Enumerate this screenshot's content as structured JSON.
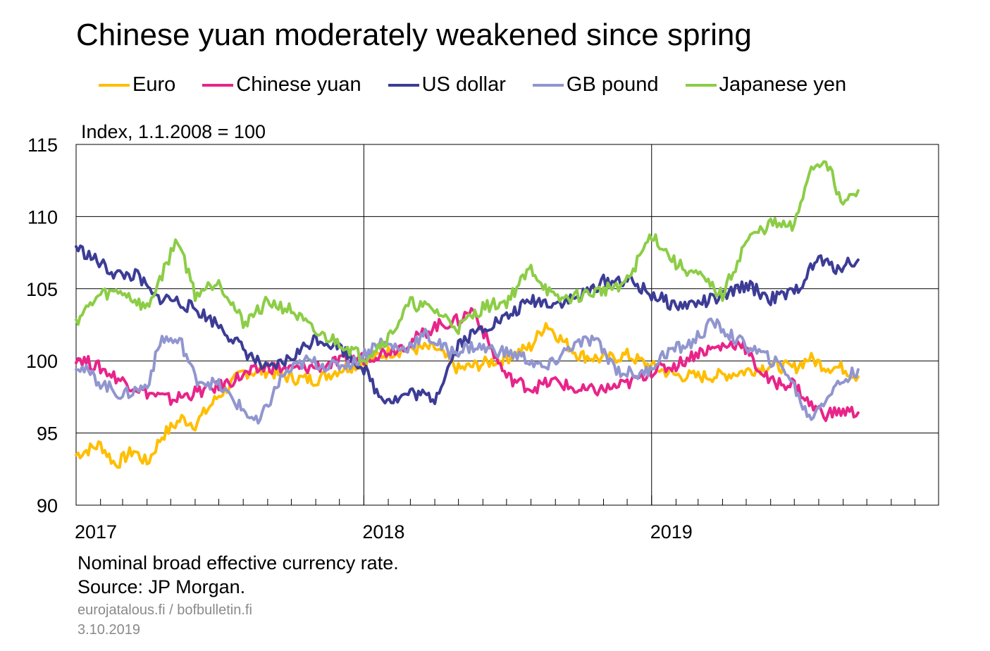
{
  "chart_data": {
    "type": "line",
    "title": "Chinese yuan moderately weakened since spring",
    "ylabel": "Index, 1.1.2008 = 100",
    "xlabel": "",
    "ylim": [
      90,
      115
    ],
    "xlim": [
      "2017-01-01",
      "2019-12-31"
    ],
    "yticks": [
      90,
      95,
      100,
      105,
      110,
      115
    ],
    "xtick_labels": [
      "2017",
      "2018",
      "2019"
    ],
    "legend_position": "top",
    "grid": true,
    "series": [
      {
        "name": "Euro",
        "color": "#ffbe00",
        "points": [
          [
            "2017-01-01",
            93.5
          ],
          [
            "2017-02-01",
            94.2
          ],
          [
            "2017-02-20",
            92.8
          ],
          [
            "2017-03-15",
            93.8
          ],
          [
            "2017-04-01",
            92.9
          ],
          [
            "2017-04-20",
            94.8
          ],
          [
            "2017-05-15",
            96.0
          ],
          [
            "2017-06-01",
            95.6
          ],
          [
            "2017-07-01",
            97.6
          ],
          [
            "2017-08-01",
            99.2
          ],
          [
            "2017-09-01",
            99.3
          ],
          [
            "2017-10-01",
            98.8
          ],
          [
            "2017-11-01",
            98.7
          ],
          [
            "2017-12-01",
            99.4
          ],
          [
            "2018-01-01",
            99.9
          ],
          [
            "2018-02-01",
            100.6
          ],
          [
            "2018-03-01",
            100.8
          ],
          [
            "2018-04-01",
            100.9
          ],
          [
            "2018-05-01",
            99.4
          ],
          [
            "2018-06-01",
            99.8
          ],
          [
            "2018-07-01",
            100.2
          ],
          [
            "2018-08-01",
            101.0
          ],
          [
            "2018-08-20",
            102.6
          ],
          [
            "2018-09-10",
            101.4
          ],
          [
            "2018-10-01",
            100.4
          ],
          [
            "2018-11-01",
            100.1
          ],
          [
            "2018-12-01",
            100.4
          ],
          [
            "2019-01-01",
            99.6
          ],
          [
            "2019-02-01",
            99.0
          ],
          [
            "2019-03-01",
            98.9
          ],
          [
            "2019-04-01",
            99.0
          ],
          [
            "2019-05-01",
            99.3
          ],
          [
            "2019-06-01",
            99.7
          ],
          [
            "2019-07-01",
            99.5
          ],
          [
            "2019-07-20",
            100.2
          ],
          [
            "2019-08-10",
            99.6
          ],
          [
            "2019-09-01",
            99.5
          ],
          [
            "2019-09-20",
            98.9
          ]
        ]
      },
      {
        "name": "Chinese yuan",
        "color": "#e8248a",
        "points": [
          [
            "2017-01-01",
            100.3
          ],
          [
            "2017-02-01",
            99.5
          ],
          [
            "2017-03-01",
            98.6
          ],
          [
            "2017-04-01",
            97.8
          ],
          [
            "2017-05-01",
            97.3
          ],
          [
            "2017-06-01",
            97.8
          ],
          [
            "2017-07-01",
            98.2
          ],
          [
            "2017-08-01",
            99.0
          ],
          [
            "2017-09-01",
            99.6
          ],
          [
            "2017-10-01",
            99.4
          ],
          [
            "2017-11-01",
            99.6
          ],
          [
            "2017-12-01",
            99.9
          ],
          [
            "2018-01-01",
            100.2
          ],
          [
            "2018-02-01",
            100.7
          ],
          [
            "2018-03-01",
            101.3
          ],
          [
            "2018-04-01",
            102.4
          ],
          [
            "2018-05-01",
            102.8
          ],
          [
            "2018-05-20",
            103.6
          ],
          [
            "2018-06-10",
            101.0
          ],
          [
            "2018-07-01",
            98.9
          ],
          [
            "2018-08-01",
            98.1
          ],
          [
            "2018-09-01",
            98.6
          ],
          [
            "2018-10-01",
            97.9
          ],
          [
            "2018-11-01",
            98.0
          ],
          [
            "2018-12-01",
            98.4
          ],
          [
            "2019-01-01",
            99.3
          ],
          [
            "2019-02-01",
            99.7
          ],
          [
            "2019-03-01",
            100.6
          ],
          [
            "2019-04-01",
            101.0
          ],
          [
            "2019-04-25",
            101.3
          ],
          [
            "2019-05-10",
            99.9
          ],
          [
            "2019-06-01",
            98.5
          ],
          [
            "2019-07-01",
            98.4
          ],
          [
            "2019-07-20",
            97.0
          ],
          [
            "2019-08-10",
            96.3
          ],
          [
            "2019-09-01",
            96.5
          ],
          [
            "2019-09-20",
            96.4
          ]
        ]
      },
      {
        "name": "US dollar",
        "color": "#3c3c96",
        "points": [
          [
            "2017-01-01",
            107.9
          ],
          [
            "2017-01-20",
            107.2
          ],
          [
            "2017-02-20",
            106.0
          ],
          [
            "2017-03-20",
            105.9
          ],
          [
            "2017-04-10",
            104.4
          ],
          [
            "2017-05-01",
            104.3
          ],
          [
            "2017-06-01",
            103.6
          ],
          [
            "2017-07-01",
            102.5
          ],
          [
            "2017-08-01",
            100.8
          ],
          [
            "2017-09-01",
            99.3
          ],
          [
            "2017-10-01",
            100.2
          ],
          [
            "2017-11-01",
            101.6
          ],
          [
            "2017-12-01",
            101.0
          ],
          [
            "2018-01-01",
            99.5
          ],
          [
            "2018-01-20",
            97.6
          ],
          [
            "2018-02-10",
            97.3
          ],
          [
            "2018-03-01",
            97.8
          ],
          [
            "2018-04-01",
            97.4
          ],
          [
            "2018-05-01",
            101.2
          ],
          [
            "2018-06-01",
            102.3
          ],
          [
            "2018-07-01",
            103.0
          ],
          [
            "2018-08-01",
            104.2
          ],
          [
            "2018-09-01",
            104.0
          ],
          [
            "2018-10-01",
            104.4
          ],
          [
            "2018-11-01",
            105.5
          ],
          [
            "2018-12-01",
            105.6
          ],
          [
            "2019-01-01",
            104.6
          ],
          [
            "2019-02-01",
            103.8
          ],
          [
            "2019-03-01",
            104.0
          ],
          [
            "2019-04-01",
            104.4
          ],
          [
            "2019-05-01",
            105.3
          ],
          [
            "2019-06-01",
            104.3
          ],
          [
            "2019-07-01",
            104.7
          ],
          [
            "2019-08-01",
            107.1
          ],
          [
            "2019-08-20",
            106.4
          ],
          [
            "2019-09-20",
            107.0
          ]
        ]
      },
      {
        "name": "GB pound",
        "color": "#9196cf",
        "points": [
          [
            "2017-01-01",
            99.8
          ],
          [
            "2017-02-01",
            98.5
          ],
          [
            "2017-03-01",
            97.6
          ],
          [
            "2017-04-01",
            98.3
          ],
          [
            "2017-04-20",
            101.6
          ],
          [
            "2017-05-15",
            101.2
          ],
          [
            "2017-06-01",
            98.8
          ],
          [
            "2017-07-01",
            98.3
          ],
          [
            "2017-08-01",
            96.6
          ],
          [
            "2017-08-20",
            95.6
          ],
          [
            "2017-09-20",
            99.0
          ],
          [
            "2017-10-20",
            100.0
          ],
          [
            "2017-11-20",
            99.6
          ],
          [
            "2017-12-20",
            99.9
          ],
          [
            "2018-01-20",
            101.3
          ],
          [
            "2018-02-20",
            100.8
          ],
          [
            "2018-03-20",
            101.8
          ],
          [
            "2018-04-20",
            100.6
          ],
          [
            "2018-05-20",
            101.0
          ],
          [
            "2018-06-20",
            100.7
          ],
          [
            "2018-07-20",
            100.3
          ],
          [
            "2018-08-20",
            99.4
          ],
          [
            "2018-09-20",
            101.0
          ],
          [
            "2018-10-20",
            101.5
          ],
          [
            "2018-11-20",
            99.3
          ],
          [
            "2018-12-20",
            99.0
          ],
          [
            "2019-01-20",
            100.6
          ],
          [
            "2019-02-20",
            101.2
          ],
          [
            "2019-03-20",
            102.7
          ],
          [
            "2019-04-20",
            101.4
          ],
          [
            "2019-05-20",
            100.5
          ],
          [
            "2019-06-20",
            99.4
          ],
          [
            "2019-07-20",
            96.0
          ],
          [
            "2019-08-20",
            98.1
          ],
          [
            "2019-09-20",
            99.4
          ]
        ]
      },
      {
        "name": "Japanese yen",
        "color": "#8ccd46",
        "points": [
          [
            "2017-01-01",
            102.8
          ],
          [
            "2017-02-01",
            104.6
          ],
          [
            "2017-03-01",
            104.8
          ],
          [
            "2017-04-01",
            103.6
          ],
          [
            "2017-04-20",
            106.0
          ],
          [
            "2017-05-10",
            108.5
          ],
          [
            "2017-06-01",
            104.6
          ],
          [
            "2017-07-01",
            105.6
          ],
          [
            "2017-08-01",
            102.6
          ],
          [
            "2017-09-01",
            104.1
          ],
          [
            "2017-10-01",
            103.5
          ],
          [
            "2017-11-01",
            101.9
          ],
          [
            "2017-12-01",
            101.3
          ],
          [
            "2018-01-01",
            100.2
          ],
          [
            "2018-02-01",
            101.6
          ],
          [
            "2018-03-01",
            104.0
          ],
          [
            "2018-04-01",
            103.5
          ],
          [
            "2018-05-01",
            102.3
          ],
          [
            "2018-06-01",
            103.7
          ],
          [
            "2018-07-01",
            104.1
          ],
          [
            "2018-08-01",
            106.4
          ],
          [
            "2018-09-01",
            104.2
          ],
          [
            "2018-10-01",
            104.5
          ],
          [
            "2018-11-01",
            104.9
          ],
          [
            "2018-12-01",
            105.5
          ],
          [
            "2019-01-01",
            108.8
          ],
          [
            "2019-02-01",
            106.7
          ],
          [
            "2019-03-01",
            105.9
          ],
          [
            "2019-04-01",
            104.5
          ],
          [
            "2019-05-01",
            108.3
          ],
          [
            "2019-06-01",
            109.5
          ],
          [
            "2019-07-01",
            109.2
          ],
          [
            "2019-07-20",
            113.2
          ],
          [
            "2019-08-10",
            114.0
          ],
          [
            "2019-09-01",
            110.8
          ],
          [
            "2019-09-20",
            111.8
          ]
        ]
      }
    ]
  },
  "notes": {
    "line1": "Nominal broad effective currency rate.",
    "line2": "Source: JP Morgan."
  },
  "footer": {
    "sites": "eurojatalous.fi  / bofbulletin.fi",
    "date": "3.10.2019"
  }
}
